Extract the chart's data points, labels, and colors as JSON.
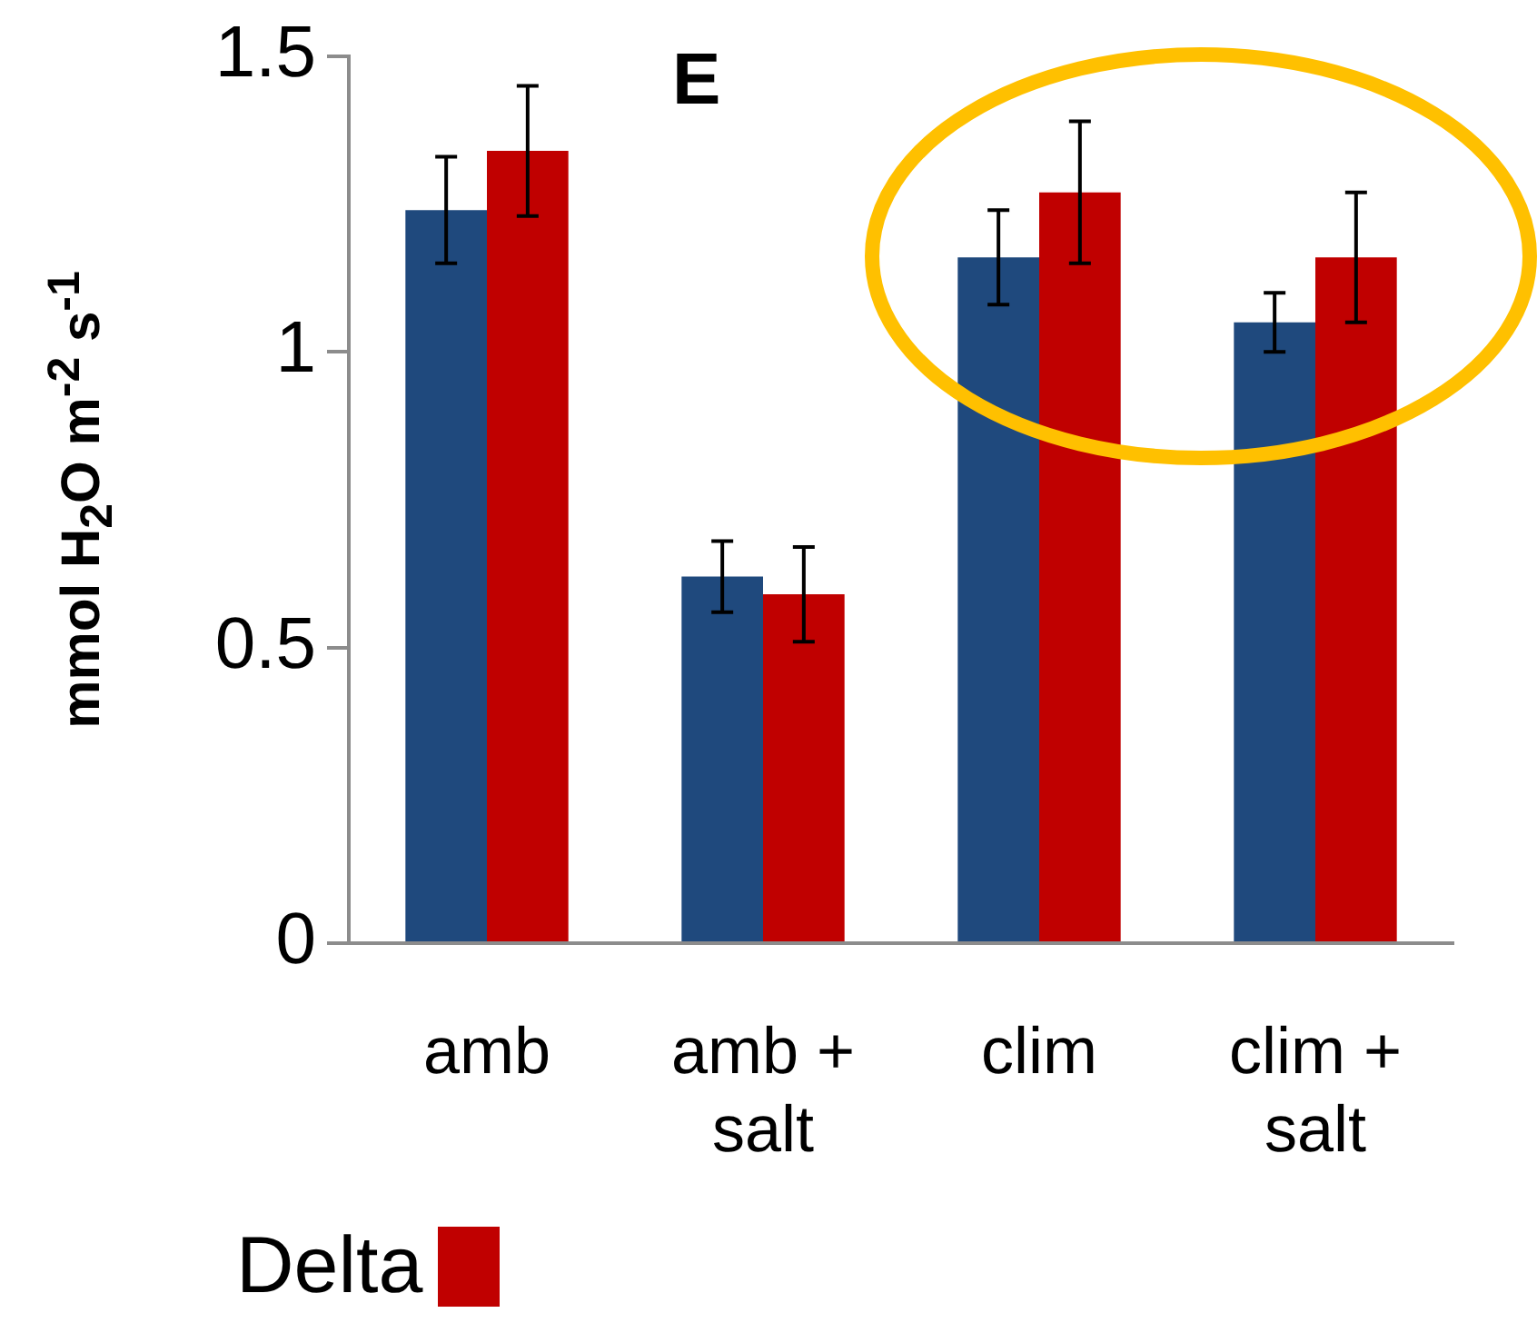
{
  "chart_data": {
    "type": "bar",
    "title": "E",
    "ylabel": "mmol H$_{2}$O m$^{-2}$ s$^{-1}$",
    "categories": [
      "amb",
      "amb + salt",
      "clim",
      "clim + salt"
    ],
    "series": [
      {
        "color": "#1f497d",
        "values": [
          1.24,
          0.62,
          1.16,
          1.05
        ],
        "errors": [
          0.09,
          0.06,
          0.08,
          0.05
        ]
      },
      {
        "name": "Delta",
        "color": "#c00000",
        "values": [
          1.34,
          0.59,
          1.27,
          1.16
        ],
        "errors": [
          0.11,
          0.08,
          0.12,
          0.11
        ]
      }
    ],
    "ylim": [
      0,
      1.5
    ],
    "yticks": [
      0,
      0.5,
      1,
      1.5
    ],
    "grid": false,
    "legend": "bottom"
  }
}
